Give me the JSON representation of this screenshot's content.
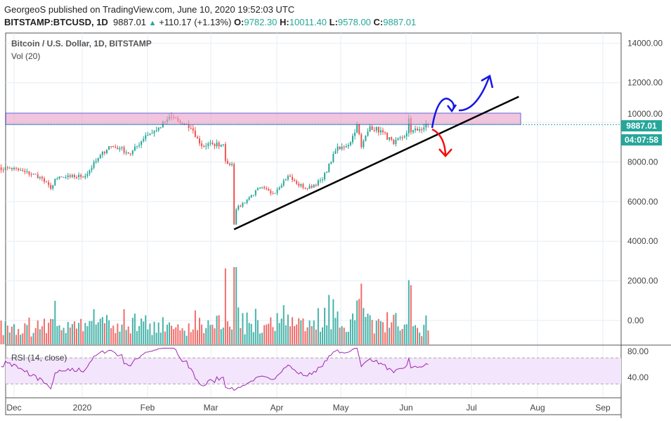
{
  "header": {
    "published": "GeorgeoS published on TradingView.com, June 10, 2020 19:52:03 UTC",
    "symbol": "BITSTAMP:BTCUSD, 1D",
    "last": "9887.01",
    "change": "+110.17 (+1.13%)",
    "o_label": "O:",
    "o": "9782.30",
    "h_label": "H:",
    "h": "10011.40",
    "l_label": "L:",
    "l": "9578.00",
    "c_label": "C:",
    "c": "9887.01"
  },
  "pane": {
    "title": "Bitcoin / U.S. Dollar, 1D, BITSTAMP",
    "vol": "Vol (20)",
    "rsi": "RSI (14, close)"
  },
  "price_tags": {
    "last": "9887.01",
    "countdown": "04:07:58"
  },
  "colors": {
    "up": "#26a69a",
    "down": "#ef5350",
    "rsi": "#9c27b0",
    "zone": "#e1bee7"
  },
  "chart_data": {
    "type": "candlestick",
    "price_ticks": [
      "14000.00",
      "12000.00",
      "10000.00",
      "8000.00",
      "6000.00",
      "4000.00",
      "2000.00",
      "0.00"
    ],
    "rsi_ticks": [
      "80.00",
      "40.00"
    ],
    "time_ticks": [
      "Dec",
      "2020",
      "Feb",
      "Mar",
      "Apr",
      "May",
      "Jun",
      "Jul",
      "Aug",
      "Sep"
    ],
    "close_anchors": [
      [
        "2019-11-22",
        7600
      ],
      [
        "2019-11-29",
        7700
      ],
      [
        "2019-12-06",
        7500
      ],
      [
        "2019-12-13",
        7250
      ],
      [
        "2019-12-18",
        6650
      ],
      [
        "2019-12-20",
        7150
      ],
      [
        "2019-12-27",
        7250
      ],
      [
        "2020-01-03",
        7300
      ],
      [
        "2020-01-08",
        8050
      ],
      [
        "2020-01-14",
        8800
      ],
      [
        "2020-01-19",
        8700
      ],
      [
        "2020-01-24",
        8400
      ],
      [
        "2020-01-31",
        9350
      ],
      [
        "2020-02-05",
        9600
      ],
      [
        "2020-02-10",
        10150
      ],
      [
        "2020-02-13",
        10250
      ],
      [
        "2020-02-17",
        9900
      ],
      [
        "2020-02-21",
        9700
      ],
      [
        "2020-02-26",
        8800
      ],
      [
        "2020-03-02",
        8900
      ],
      [
        "2020-03-07",
        8900
      ],
      [
        "2020-03-08",
        8050
      ],
      [
        "2020-03-11",
        7900
      ],
      [
        "2020-03-12",
        4850
      ],
      [
        "2020-03-13",
        5600
      ],
      [
        "2020-03-19",
        6200
      ],
      [
        "2020-03-24",
        6700
      ],
      [
        "2020-03-30",
        6400
      ],
      [
        "2020-04-06",
        7300
      ],
      [
        "2020-04-10",
        6900
      ],
      [
        "2020-04-15",
        6650
      ],
      [
        "2020-04-22",
        7120
      ],
      [
        "2020-04-29",
        8780
      ],
      [
        "2020-04-30",
        8650
      ],
      [
        "2020-05-05",
        9000
      ],
      [
        "2020-05-08",
        9900
      ],
      [
        "2020-05-10",
        8750
      ],
      [
        "2020-05-14",
        9800
      ],
      [
        "2020-05-20",
        9500
      ],
      [
        "2020-05-25",
        8900
      ],
      [
        "2020-05-31",
        9450
      ],
      [
        "2020-06-01",
        10200
      ],
      [
        "2020-06-02",
        9500
      ],
      [
        "2020-06-06",
        9650
      ],
      [
        "2020-06-10",
        9887
      ]
    ],
    "resistance_zone": [
      10000,
      10500
    ],
    "support_line": [
      [
        "2020-03-12",
        4600
      ],
      [
        "2020-07-22",
        11300
      ]
    ]
  }
}
